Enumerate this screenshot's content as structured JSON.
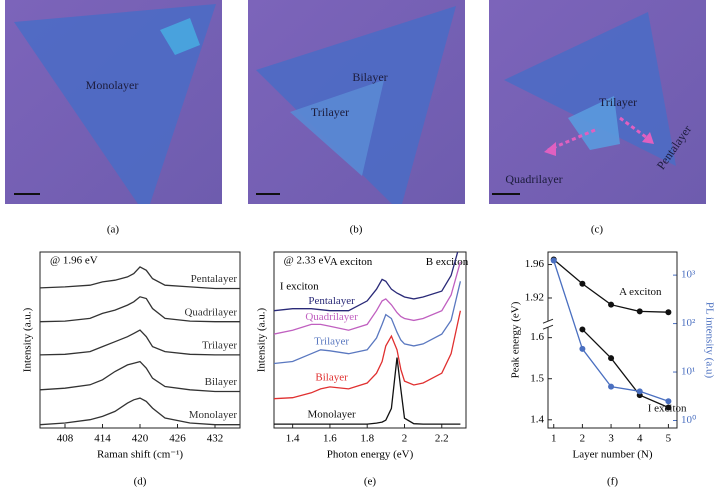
{
  "images": [
    {
      "caption": "(a)",
      "labels": [
        "Monolayer"
      ]
    },
    {
      "caption": "(b)",
      "labels": [
        "Bilayer",
        "Trilayer"
      ]
    },
    {
      "caption": "(c)",
      "labels": [
        "Trilayer",
        "Quadrilayer",
        "Pentalayer"
      ]
    }
  ],
  "chart_data": [
    {
      "type": "line",
      "caption": "(d)",
      "annotations": [
        "@ 1.96 eV"
      ],
      "xlabel": "Raman shift (cm⁻¹)",
      "ylabel": "Intensity (a.u.)",
      "x": [
        404,
        408,
        412,
        414,
        416,
        418,
        419,
        420,
        421,
        422,
        424,
        428,
        432,
        436
      ],
      "xlim": [
        404,
        436
      ],
      "xticks": [
        408,
        414,
        420,
        426,
        432
      ],
      "ylim": [
        0,
        5.3
      ],
      "series": [
        {
          "name": "Monolayer",
          "color": "#333333",
          "values": [
            0.1,
            0.15,
            0.25,
            0.35,
            0.5,
            0.75,
            0.85,
            0.9,
            0.8,
            0.6,
            0.3,
            0.15,
            0.1,
            0.1
          ]
        },
        {
          "name": "Bilayer",
          "color": "#333333",
          "values": [
            1.15,
            1.2,
            1.3,
            1.45,
            1.7,
            1.9,
            1.95,
            2.0,
            1.8,
            1.5,
            1.25,
            1.15,
            1.1,
            1.1
          ]
        },
        {
          "name": "Trilayer",
          "color": "#333333",
          "values": [
            2.2,
            2.22,
            2.3,
            2.45,
            2.6,
            2.75,
            2.85,
            2.95,
            2.75,
            2.45,
            2.3,
            2.22,
            2.2,
            2.2
          ]
        },
        {
          "name": "Quadrilayer",
          "color": "#333333",
          "values": [
            3.2,
            3.22,
            3.3,
            3.45,
            3.55,
            3.7,
            3.8,
            3.95,
            3.9,
            3.6,
            3.3,
            3.22,
            3.2,
            3.2
          ]
        },
        {
          "name": "Pentalayer",
          "color": "#333333",
          "values": [
            4.22,
            4.25,
            4.3,
            4.4,
            4.45,
            4.55,
            4.65,
            4.85,
            4.75,
            4.5,
            4.3,
            4.25,
            4.2,
            4.2
          ]
        }
      ]
    },
    {
      "type": "line",
      "caption": "(e)",
      "annotations": [
        "@ 2.33 eV",
        "A exciton",
        "B exciton",
        "I exciton"
      ],
      "xlabel": "Photon energy (eV)",
      "ylabel": "Intensity (a.u.)",
      "x": [
        1.3,
        1.4,
        1.5,
        1.55,
        1.6,
        1.7,
        1.8,
        1.85,
        1.88,
        1.9,
        1.93,
        1.96,
        1.98,
        2.0,
        2.05,
        2.1,
        2.2,
        2.25,
        2.3
      ],
      "xlim": [
        1.3,
        2.33
      ],
      "xticks": [
        1.4,
        1.6,
        1.8,
        2.0,
        2.2
      ],
      "ylim": [
        0,
        9
      ],
      "series": [
        {
          "name": "Monolayer",
          "color": "#111111",
          "values": [
            0.2,
            0.2,
            0.2,
            0.2,
            0.2,
            0.2,
            0.2,
            0.25,
            0.3,
            0.4,
            1.0,
            3.6,
            2.0,
            0.5,
            0.22,
            0.2,
            0.2,
            0.2,
            0.2
          ]
        },
        {
          "name": "Bilayer",
          "color": "#e03030",
          "values": [
            1.5,
            1.55,
            1.8,
            2.0,
            2.1,
            2.0,
            2.3,
            2.8,
            3.4,
            4.2,
            4.7,
            4.0,
            3.0,
            2.4,
            2.2,
            2.3,
            2.8,
            3.8,
            6.0
          ]
        },
        {
          "name": "Trilayer",
          "color": "#5a78c0",
          "values": [
            3.3,
            3.4,
            3.8,
            4.0,
            3.95,
            3.8,
            4.0,
            4.6,
            5.3,
            5.8,
            5.6,
            4.9,
            4.5,
            4.3,
            4.2,
            4.3,
            4.8,
            5.5,
            7.5
          ]
        },
        {
          "name": "Quadrilayer",
          "color": "#c060c0",
          "values": [
            4.8,
            5.0,
            5.3,
            5.3,
            5.2,
            5.0,
            5.3,
            6.0,
            6.5,
            6.6,
            6.3,
            5.9,
            5.7,
            5.6,
            5.5,
            5.6,
            6.0,
            6.8,
            8.5
          ]
        },
        {
          "name": "Pentalayer",
          "color": "#2a2a78",
          "values": [
            6.0,
            6.1,
            6.1,
            6.05,
            6.0,
            6.0,
            6.5,
            7.1,
            7.6,
            7.5,
            7.1,
            6.9,
            6.8,
            6.7,
            6.6,
            6.7,
            7.0,
            7.8,
            9.5
          ]
        }
      ]
    },
    {
      "type": "line",
      "caption": "(f)",
      "markers": true,
      "xlabel": "Layer number (N)",
      "ylabel": "Peak energy (eV)",
      "y2label": "PL intensity (a.u)",
      "xlim": [
        0.8,
        5.3
      ],
      "xticks": [
        1,
        2,
        3,
        4,
        5
      ],
      "ylim": [
        1.38,
        1.975
      ],
      "ybreak": [
        1.62,
        1.895
      ],
      "yticks": [
        1.4,
        1.5,
        1.6,
        1.92,
        1.96
      ],
      "y2lim": [
        0.7,
        3000
      ],
      "y2log": true,
      "y2ticks": [
        {
          "value": 1,
          "label": "10⁰"
        },
        {
          "value": 10,
          "label": "10¹"
        },
        {
          "value": 100,
          "label": "10²"
        },
        {
          "value": 1000,
          "label": "10³"
        }
      ],
      "series": [
        {
          "name": "A exciton",
          "color": "#111111",
          "x": [
            1,
            2,
            3,
            4,
            5
          ],
          "values": [
            1.966,
            1.937,
            1.912,
            1.904,
            1.903
          ]
        },
        {
          "name": "I exciton",
          "color": "#111111",
          "x": [
            2,
            3,
            4,
            5
          ],
          "values": [
            1.62,
            1.55,
            1.46,
            1.43
          ]
        },
        {
          "color": "#4a6fc0",
          "axis": "y2",
          "x": [
            1,
            2,
            3,
            4,
            5
          ],
          "values": [
            2000,
            30,
            5,
            4,
            2.5
          ]
        }
      ]
    }
  ]
}
